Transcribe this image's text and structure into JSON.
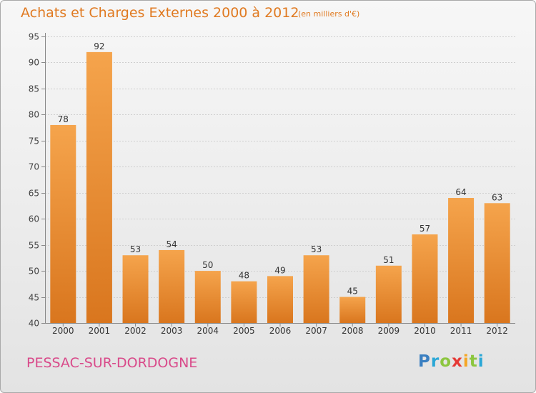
{
  "title": "Achats et Charges Externes 2000 à 2012",
  "subtitle": "(en milliers d'€)",
  "commune": "PESSAC-SUR-DORDOGNE",
  "logo": {
    "letters": [
      {
        "char": "P",
        "color": "#3a7fc1"
      },
      {
        "char": "r",
        "color": "#2aa7d6"
      },
      {
        "char": "o",
        "color": "#8cc63f"
      },
      {
        "char": "x",
        "color": "#e53935"
      },
      {
        "char": "i",
        "color": "#f5a623"
      },
      {
        "char": "t",
        "color": "#8cc63f"
      },
      {
        "char": "i",
        "color": "#2aa7d6"
      }
    ]
  },
  "colors": {
    "bar_light": "#f5a44c",
    "bar_dark": "#d9761e",
    "title": "#e07a21",
    "commune": "#d94a8a"
  },
  "chart_data": {
    "type": "bar",
    "title": "Achats et Charges Externes 2000 à 2012",
    "subtitle": "(en milliers d'€)",
    "categories": [
      "2000",
      "2001",
      "2002",
      "2003",
      "2004",
      "2005",
      "2006",
      "2007",
      "2008",
      "2009",
      "2010",
      "2011",
      "2012"
    ],
    "values": [
      78,
      92,
      53,
      54,
      50,
      48,
      49,
      53,
      45,
      51,
      57,
      64,
      63
    ],
    "ylim": [
      40,
      95
    ],
    "yticks": [
      40,
      45,
      50,
      55,
      60,
      65,
      70,
      75,
      80,
      85,
      90,
      95
    ],
    "grid": true,
    "xlabel": "",
    "ylabel": ""
  }
}
